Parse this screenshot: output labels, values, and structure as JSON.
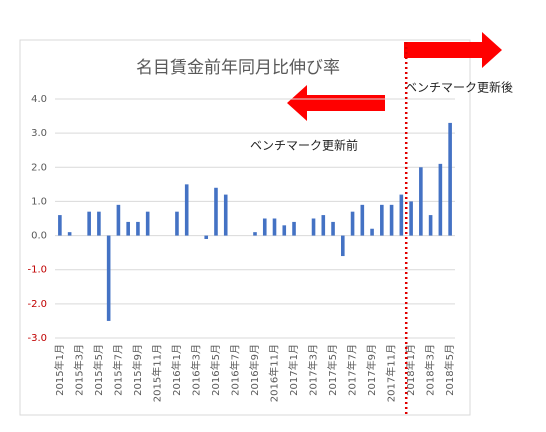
{
  "chart_data": {
    "type": "bar",
    "title": "名目賃金前年同月比伸び率",
    "categories": [
      "2015年1月",
      null,
      "2015年3月",
      null,
      "2015年5月",
      null,
      "2015年7月",
      null,
      "2015年9月",
      null,
      "2015年11月",
      null,
      "2016年1月",
      null,
      "2016年3月",
      null,
      "2016年5月",
      null,
      "2016年7月",
      null,
      "2016年9月",
      null,
      "2016年11月",
      null,
      "2017年1月",
      null,
      "2017年3月",
      null,
      "2017年5月",
      null,
      "2017年7月",
      null,
      "2017年9月",
      null,
      "2017年11月",
      null,
      "2018年1月",
      null,
      "2018年3月",
      null,
      "2018年5月"
    ],
    "values": [
      0.6,
      0.1,
      0,
      0.7,
      0.7,
      -2.5,
      0.9,
      0.4,
      0.4,
      0.7,
      0,
      0,
      0.7,
      1.5,
      0,
      -0.1,
      1.4,
      1.2,
      0,
      0,
      0.1,
      0.5,
      0.5,
      0.3,
      0.4,
      0,
      0.5,
      0.6,
      0.4,
      -0.6,
      0.7,
      0.9,
      0.2,
      0.9,
      0.9,
      1.2,
      1.0,
      2.0,
      0.6,
      2.1,
      3.3
    ],
    "color": "#4472c4",
    "ylim": [
      -3,
      4
    ],
    "yticks": [
      {
        "value": 4,
        "label": "4.0"
      },
      {
        "value": 3,
        "label": "3.0"
      },
      {
        "value": 2,
        "label": "2.0"
      },
      {
        "value": 1,
        "label": "1.0"
      },
      {
        "value": 0,
        "label": "0.0"
      },
      {
        "value": -1,
        "label": "-1.0"
      },
      {
        "value": -2,
        "label": "-2.0"
      },
      {
        "value": -3,
        "label": "-3.0"
      }
    ],
    "negative_tick_color": "#c00000",
    "grid": true,
    "annotations": [
      "ベンチマーク更新後",
      "ベンチマーク更新前"
    ]
  }
}
